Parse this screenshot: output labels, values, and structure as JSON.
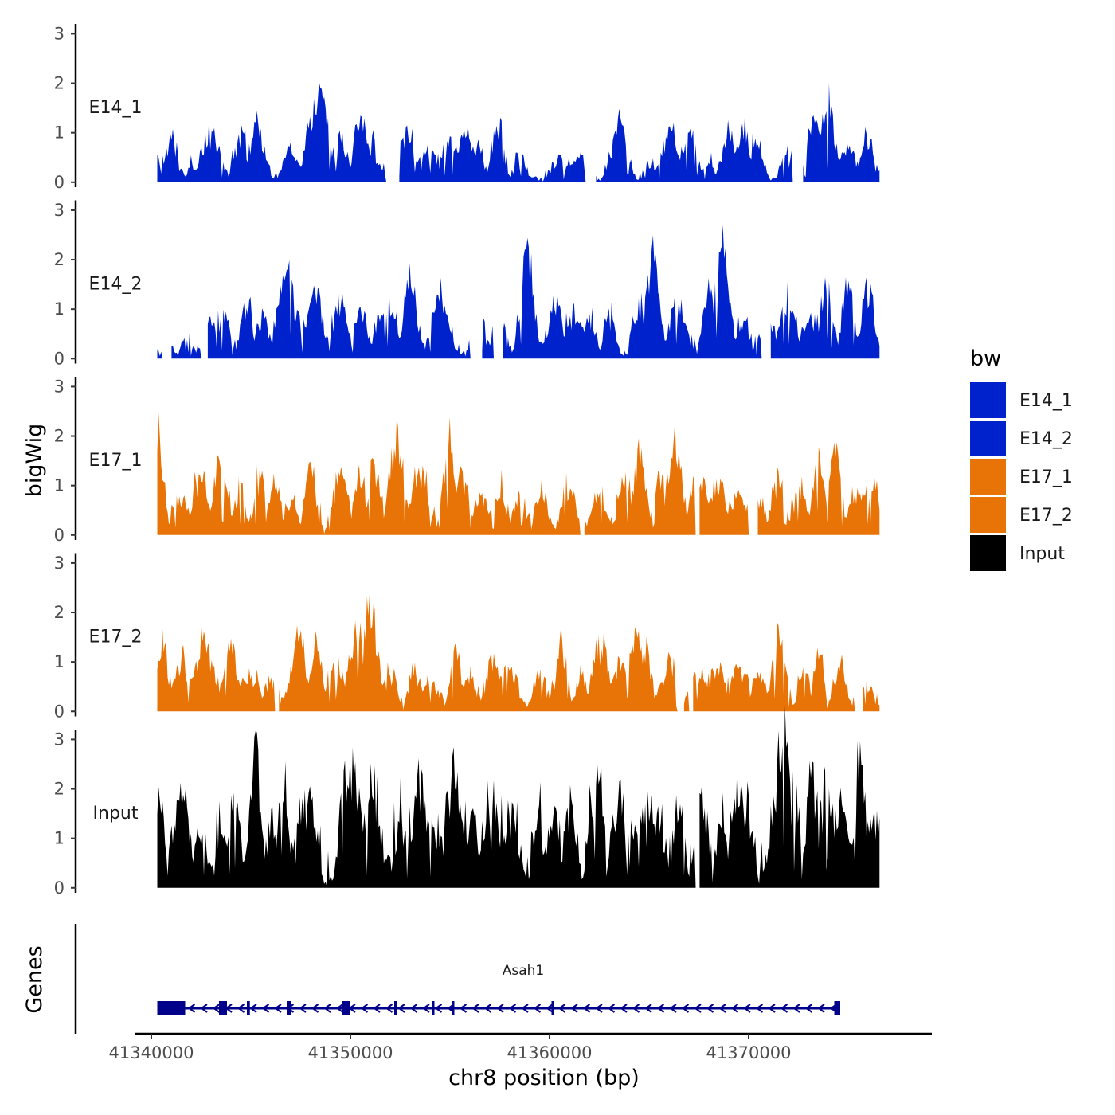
{
  "chart_data": {
    "type": "area",
    "title": "",
    "xlabel": "chr8 position (bp)",
    "ylabel": "bigWig",
    "gene_panel_label": "Genes",
    "legend_title": "bw",
    "x_range": [
      41339200,
      41379200
    ],
    "region": [
      41340300,
      41376600
    ],
    "x_ticks": [
      41340000,
      41350000,
      41360000,
      41370000
    ],
    "x_tick_labels": [
      "41340000",
      "41350000",
      "41360000",
      "41370000"
    ],
    "y_ticks": [
      0,
      1,
      2,
      3
    ],
    "ylim": [
      -0.1,
      3.2
    ],
    "colors": {
      "E14": "#0022CC",
      "E17": "#E87306",
      "Input": "#000000",
      "gene": "#00008B"
    },
    "tracks": [
      {
        "name": "E14_1",
        "color": "#0022CC",
        "peaks": [
          [
            41340300,
            0.3
          ],
          [
            41341000,
            1.0
          ],
          [
            41342000,
            0.3
          ],
          [
            41343000,
            1.1
          ],
          [
            41344500,
            1.2
          ],
          [
            41345300,
            1.3
          ],
          [
            41347000,
            0.8
          ],
          [
            41348200,
            1.7
          ],
          [
            41348500,
            2.0
          ],
          [
            41349500,
            1.0
          ],
          [
            41350500,
            1.6
          ],
          [
            41351000,
            0.8
          ],
          [
            41352800,
            1.1
          ],
          [
            41354000,
            0.7
          ],
          [
            41355000,
            1.0
          ],
          [
            41355800,
            1.2
          ],
          [
            41356400,
            0.8
          ],
          [
            41357400,
            1.3
          ],
          [
            41358500,
            0.5
          ],
          [
            41360500,
            0.4
          ],
          [
            41361500,
            0.5
          ],
          [
            41363500,
            1.3
          ],
          [
            41365200,
            0.3
          ],
          [
            41366000,
            1.1
          ],
          [
            41367000,
            1.3
          ],
          [
            41368000,
            0.3
          ],
          [
            41369000,
            1.2
          ],
          [
            41369700,
            1.3
          ],
          [
            41370400,
            1.0
          ],
          [
            41372000,
            0.5
          ],
          [
            41373300,
            1.4
          ],
          [
            41374000,
            1.8
          ],
          [
            41375000,
            0.8
          ],
          [
            41376000,
            1.1
          ]
        ],
        "gaps": [
          [
            41351800,
            41352400
          ],
          [
            41361800,
            41362300
          ],
          [
            41372200,
            41372700
          ]
        ]
      },
      {
        "name": "E14_2",
        "color": "#0022CC",
        "peaks": [
          [
            41340800,
            0.2
          ],
          [
            41341800,
            0.4
          ],
          [
            41343000,
            0.8
          ],
          [
            41343600,
            1.0
          ],
          [
            41344800,
            1.4
          ],
          [
            41345600,
            1.0
          ],
          [
            41346800,
            2.1
          ],
          [
            41347300,
            1.0
          ],
          [
            41348200,
            1.6
          ],
          [
            41349500,
            1.4
          ],
          [
            41350500,
            1.0
          ],
          [
            41351500,
            1.1
          ],
          [
            41352000,
            1.2
          ],
          [
            41353000,
            1.8
          ],
          [
            41354500,
            1.4
          ],
          [
            41356500,
            0.6
          ],
          [
            41357500,
            0.8
          ],
          [
            41358900,
            2.4
          ],
          [
            41360300,
            1.3
          ],
          [
            41361200,
            1.0
          ],
          [
            41362000,
            0.9
          ],
          [
            41363000,
            1.0
          ],
          [
            41364500,
            1.1
          ],
          [
            41365200,
            2.5
          ],
          [
            41366400,
            1.4
          ],
          [
            41368000,
            1.5
          ],
          [
            41368700,
            2.7
          ],
          [
            41369700,
            1.0
          ],
          [
            41371000,
            0.9
          ],
          [
            41372000,
            1.3
          ],
          [
            41373000,
            0.9
          ],
          [
            41373900,
            1.8
          ],
          [
            41375000,
            1.6
          ],
          [
            41376000,
            1.7
          ]
        ],
        "gaps": [
          [
            41340500,
            41341000
          ],
          [
            41342500,
            41342800
          ],
          [
            41356000,
            41356600
          ],
          [
            41357200,
            41357600
          ],
          [
            41370600,
            41371100
          ]
        ]
      },
      {
        "name": "E17_1",
        "color": "#E87306",
        "peaks": [
          [
            41340300,
            2.4
          ],
          [
            41341500,
            0.9
          ],
          [
            41342500,
            1.4
          ],
          [
            41343500,
            1.8
          ],
          [
            41344500,
            1.0
          ],
          [
            41345500,
            1.4
          ],
          [
            41346200,
            1.3
          ],
          [
            41347000,
            0.8
          ],
          [
            41348000,
            1.5
          ],
          [
            41349500,
            1.3
          ],
          [
            41350500,
            1.3
          ],
          [
            41351200,
            1.6
          ],
          [
            41352300,
            2.3
          ],
          [
            41353500,
            1.4
          ],
          [
            41355000,
            2.4
          ],
          [
            41355500,
            1.4
          ],
          [
            41356600,
            0.8
          ],
          [
            41357500,
            1.1
          ],
          [
            41358500,
            0.9
          ],
          [
            41359600,
            1.0
          ],
          [
            41361000,
            1.1
          ],
          [
            41362500,
            1.0
          ],
          [
            41363800,
            1.3
          ],
          [
            41364500,
            1.8
          ],
          [
            41365500,
            1.4
          ],
          [
            41366300,
            2.3
          ],
          [
            41367500,
            1.4
          ],
          [
            41368500,
            1.2
          ],
          [
            41369500,
            0.9
          ],
          [
            41370500,
            0.8
          ],
          [
            41371500,
            1.3
          ],
          [
            41372600,
            1.0
          ],
          [
            41373500,
            1.8
          ],
          [
            41374300,
            2.0
          ],
          [
            41375500,
            1.0
          ],
          [
            41376200,
            1.2
          ]
        ],
        "gaps": [
          [
            41361500,
            41361700
          ],
          [
            41367300,
            41367500
          ],
          [
            41370000,
            41370400
          ]
        ]
      },
      {
        "name": "E17_2",
        "color": "#E87306",
        "peaks": [
          [
            41340300,
            0.6
          ],
          [
            41340600,
            1.5
          ],
          [
            41341500,
            1.2
          ],
          [
            41342600,
            1.8
          ],
          [
            41343000,
            0.9
          ],
          [
            41344000,
            1.5
          ],
          [
            41345000,
            0.8
          ],
          [
            41346100,
            0.7
          ],
          [
            41347400,
            1.8
          ],
          [
            41348300,
            1.6
          ],
          [
            41349300,
            1.0
          ],
          [
            41350300,
            1.9
          ],
          [
            41351000,
            2.3
          ],
          [
            41352000,
            0.8
          ],
          [
            41353200,
            1.0
          ],
          [
            41354000,
            0.7
          ],
          [
            41355300,
            1.5
          ],
          [
            41356000,
            0.8
          ],
          [
            41357200,
            1.1
          ],
          [
            41358000,
            1.0
          ],
          [
            41359500,
            1.0
          ],
          [
            41360600,
            1.5
          ],
          [
            41361600,
            0.8
          ],
          [
            41362600,
            1.5
          ],
          [
            41363500,
            1.1
          ],
          [
            41364300,
            1.8
          ],
          [
            41364800,
            1.5
          ],
          [
            41366000,
            1.1
          ],
          [
            41367500,
            0.9
          ],
          [
            41368500,
            1.0
          ],
          [
            41369500,
            1.1
          ],
          [
            41370500,
            0.8
          ],
          [
            41371500,
            1.8
          ],
          [
            41372800,
            1.1
          ],
          [
            41373500,
            1.3
          ],
          [
            41374600,
            1.1
          ],
          [
            41376000,
            0.6
          ]
        ],
        "gaps": [
          [
            41346200,
            41346400
          ],
          [
            41366400,
            41366700
          ],
          [
            41367000,
            41367200
          ],
          [
            41375300,
            41375700
          ]
        ]
      },
      {
        "name": "Input",
        "color": "#000000",
        "peaks": [
          [
            41340300,
            1.6
          ],
          [
            41341000,
            1.4
          ],
          [
            41341500,
            2.3
          ],
          [
            41342500,
            1.2
          ],
          [
            41343500,
            1.3
          ],
          [
            41344200,
            1.8
          ],
          [
            41345200,
            2.8
          ],
          [
            41346000,
            1.3
          ],
          [
            41346600,
            2.1
          ],
          [
            41347400,
            1.5
          ],
          [
            41348000,
            1.8
          ],
          [
            41349700,
            2.3
          ],
          [
            41350200,
            2.6
          ],
          [
            41351200,
            2.1
          ],
          [
            41352500,
            1.5
          ],
          [
            41353500,
            2.1
          ],
          [
            41354000,
            1.3
          ],
          [
            41355200,
            2.6
          ],
          [
            41356000,
            1.6
          ],
          [
            41357000,
            1.8
          ],
          [
            41358000,
            1.5
          ],
          [
            41359500,
            1.3
          ],
          [
            41360200,
            1.8
          ],
          [
            41361000,
            1.5
          ],
          [
            41362400,
            2.7
          ],
          [
            41363500,
            1.6
          ],
          [
            41364500,
            1.5
          ],
          [
            41365300,
            1.8
          ],
          [
            41366500,
            1.6
          ],
          [
            41367600,
            1.7
          ],
          [
            41368600,
            1.4
          ],
          [
            41369500,
            2.4
          ],
          [
            41370000,
            1.5
          ],
          [
            41371700,
            3.2
          ],
          [
            41372300,
            1.5
          ],
          [
            41373200,
            2.3
          ],
          [
            41373900,
            2.4
          ],
          [
            41374700,
            1.9
          ],
          [
            41375600,
            2.5
          ],
          [
            41376200,
            1.6
          ]
        ],
        "gaps": [
          [
            41367300,
            41367500
          ]
        ]
      }
    ],
    "genes": [
      {
        "name": "Asah1",
        "start": 41340300,
        "end": 41374600,
        "strand": "-",
        "exons": [
          [
            41340300,
            41341700
          ],
          [
            41343400,
            41343800
          ],
          [
            41344800,
            41344950
          ],
          [
            41346800,
            41347000
          ],
          [
            41349600,
            41350000
          ],
          [
            41352200,
            41352350
          ],
          [
            41354100,
            41354200
          ],
          [
            41355100,
            41355200
          ],
          [
            41360100,
            41360200
          ],
          [
            41374300,
            41374600
          ]
        ]
      }
    ]
  }
}
